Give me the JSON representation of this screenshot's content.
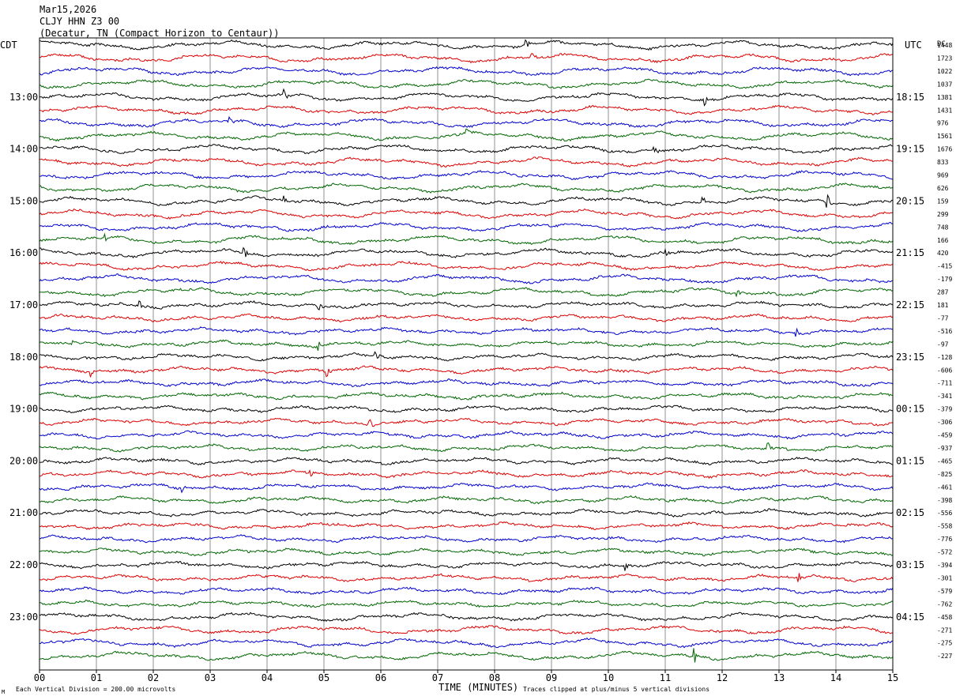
{
  "header": {
    "date": "Mar15,2026",
    "station": "CLJY HHN Z3 00",
    "location": "(Decatur, TN (Compact Horizon to Centaur))"
  },
  "axis": {
    "left_tz": "CDT",
    "right_tz": "UTC",
    "dc_label": "DC",
    "x_title": "TIME (MINUTES)",
    "x_ticks": [
      "00",
      "01",
      "02",
      "03",
      "04",
      "05",
      "06",
      "07",
      "08",
      "09",
      "10",
      "11",
      "12",
      "13",
      "14",
      "15"
    ]
  },
  "footer": {
    "left_note": "Each Vertical Division =  200.00 microvolts",
    "right_note": "Traces clipped at plus/minus 5 vertical divisions",
    "corner_mark": "M"
  },
  "chart_data": {
    "type": "line",
    "trace_count": 48,
    "minutes_per_trace": 15,
    "x_range": [
      0,
      15
    ],
    "grid": true,
    "trace_colors": [
      "#000000",
      "#dd0000",
      "#0000cc",
      "#006600"
    ],
    "left_time_labels": [
      {
        "trace": 4,
        "label": "13:00"
      },
      {
        "trace": 8,
        "label": "14:00"
      },
      {
        "trace": 12,
        "label": "15:00"
      },
      {
        "trace": 16,
        "label": "16:00"
      },
      {
        "trace": 20,
        "label": "17:00"
      },
      {
        "trace": 24,
        "label": "18:00"
      },
      {
        "trace": 28,
        "label": "19:00"
      },
      {
        "trace": 32,
        "label": "20:00"
      },
      {
        "trace": 36,
        "label": "21:00"
      },
      {
        "trace": 40,
        "label": "22:00"
      },
      {
        "trace": 44,
        "label": "23:00"
      }
    ],
    "right_time_labels": [
      {
        "trace": 4,
        "label": "18:15"
      },
      {
        "trace": 8,
        "label": "19:15"
      },
      {
        "trace": 12,
        "label": "20:15"
      },
      {
        "trace": 16,
        "label": "21:15"
      },
      {
        "trace": 20,
        "label": "22:15"
      },
      {
        "trace": 24,
        "label": "23:15"
      },
      {
        "trace": 28,
        "label": "00:15"
      },
      {
        "trace": 32,
        "label": "01:15"
      },
      {
        "trace": 36,
        "label": "02:15"
      },
      {
        "trace": 40,
        "label": "03:15"
      },
      {
        "trace": 44,
        "label": "04:15"
      }
    ],
    "dc_offsets": [
      "1448",
      "1723",
      "1022",
      "1037",
      "1381",
      "1431",
      "976",
      "1561",
      "1676",
      "833",
      "969",
      "626",
      "159",
      "299",
      "748",
      "166",
      "420",
      "-415",
      "-179",
      "287",
      "181",
      "-77",
      "-516",
      "-97",
      "-128",
      "-606",
      "-711",
      "-341",
      "-379",
      "-306",
      "-459",
      "-937",
      "-465",
      "-825",
      "-461",
      "-398",
      "-556",
      "-558",
      "-776",
      "-572",
      "-394",
      "-301",
      "-579",
      "-762",
      "-458",
      "-271",
      "-275",
      "-227"
    ],
    "events": [
      {
        "trace": 0,
        "minute": 8.55,
        "amp": 6
      },
      {
        "trace": 1,
        "minute": 8.65,
        "amp": 6
      },
      {
        "trace": 4,
        "minute": 4.3,
        "amp": 9
      },
      {
        "trace": 4,
        "minute": 11.7,
        "amp": 8
      },
      {
        "trace": 6,
        "minute": 3.35,
        "amp": 6
      },
      {
        "trace": 7,
        "minute": 7.5,
        "amp": 8
      },
      {
        "trace": 8,
        "minute": 10.8,
        "amp": 6
      },
      {
        "trace": 12,
        "minute": 4.3,
        "amp": 8
      },
      {
        "trace": 12,
        "minute": 11.65,
        "amp": 10
      },
      {
        "trace": 12,
        "minute": 13.85,
        "amp": 10
      },
      {
        "trace": 15,
        "minute": 1.15,
        "amp": 6
      },
      {
        "trace": 16,
        "minute": 3.6,
        "amp": 7
      },
      {
        "trace": 16,
        "minute": 11.0,
        "amp": 6
      },
      {
        "trace": 19,
        "minute": 12.25,
        "amp": 7
      },
      {
        "trace": 20,
        "minute": 1.75,
        "amp": 8
      },
      {
        "trace": 20,
        "minute": 4.9,
        "amp": 8
      },
      {
        "trace": 22,
        "minute": 13.3,
        "amp": 7
      },
      {
        "trace": 23,
        "minute": 0.6,
        "amp": 7
      },
      {
        "trace": 23,
        "minute": 4.9,
        "amp": 8
      },
      {
        "trace": 24,
        "minute": 5.9,
        "amp": 8
      },
      {
        "trace": 25,
        "minute": 0.9,
        "amp": 8
      },
      {
        "trace": 25,
        "minute": 5.05,
        "amp": 9
      },
      {
        "trace": 29,
        "minute": 5.8,
        "amp": 8
      },
      {
        "trace": 31,
        "minute": 12.8,
        "amp": 12
      },
      {
        "trace": 33,
        "minute": 4.75,
        "amp": 7
      },
      {
        "trace": 34,
        "minute": 2.5,
        "amp": 6
      },
      {
        "trace": 40,
        "minute": 10.3,
        "amp": 5
      },
      {
        "trace": 41,
        "minute": 13.35,
        "amp": 6
      },
      {
        "trace": 47,
        "minute": 11.5,
        "amp": 12
      }
    ]
  }
}
